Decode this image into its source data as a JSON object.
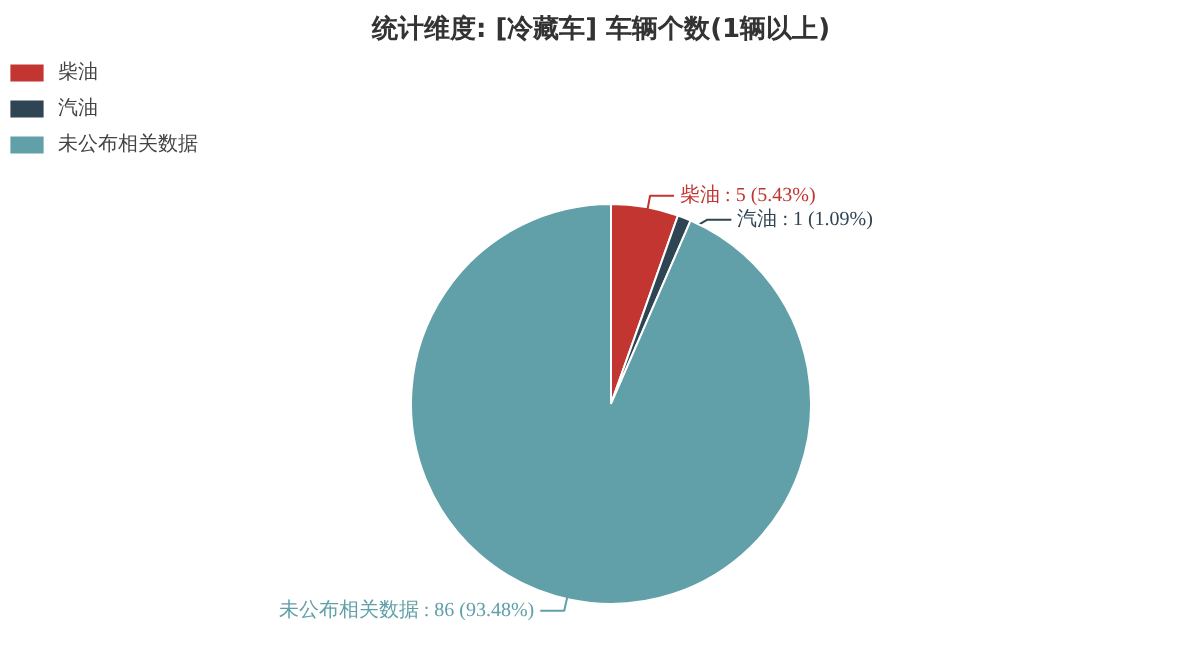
{
  "chart_data": {
    "type": "pie",
    "title": "统计维度: [冷藏车] 车辆个数(1辆以上)",
    "categories": [
      "柴油",
      "汽油",
      "未公布相关数据"
    ],
    "values": [
      5,
      1,
      86
    ],
    "colors": [
      "#c23531",
      "#2f4554",
      "#61a0a8"
    ],
    "value_labels": [
      "柴油 : 5 (5.43%)",
      "汽油 : 1 (1.09%)",
      "未公布相关数据 : 86 (93.48%)"
    ],
    "legend": "top left"
  }
}
